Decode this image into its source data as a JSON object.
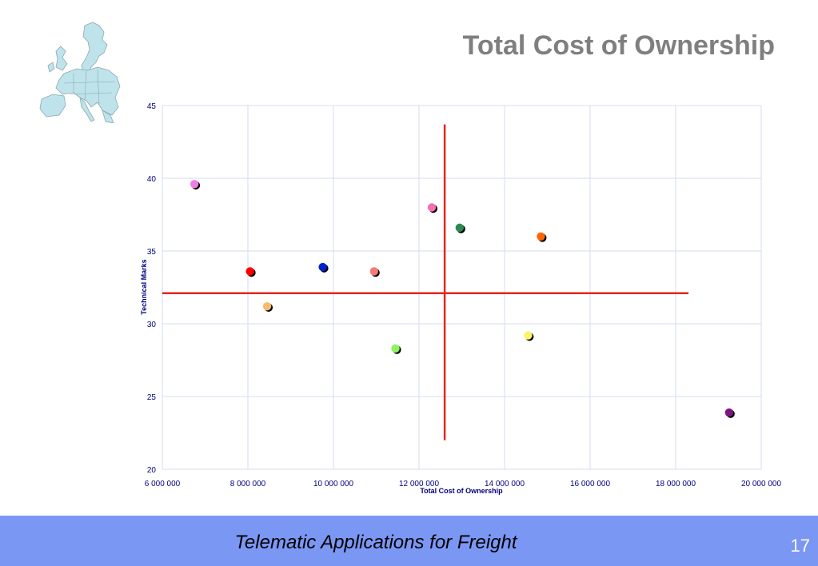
{
  "slide": {
    "title": "Total Cost of Ownership",
    "footer_text": "Telematic Applications for Freight",
    "page_number": "17"
  },
  "colors": {
    "title": "#7f7f7f",
    "footer_background": "#7b97f4",
    "threshold_lines": "#e3261d",
    "grid": "#d7dbee",
    "axis_text": "#000080",
    "map_fill": "#bfe3ea"
  },
  "icons": {
    "logo": "europe-map-icon"
  },
  "chart_data": {
    "type": "scatter",
    "title": "",
    "xlabel": "Total Cost of Ownership",
    "ylabel": "Technical  Marks",
    "xlim": [
      6000000,
      20000000
    ],
    "ylim": [
      20,
      45
    ],
    "x_ticks": [
      6000000,
      8000000,
      10000000,
      12000000,
      14000000,
      16000000,
      18000000,
      20000000
    ],
    "x_tick_labels": [
      "6 000 000",
      "8 000 000",
      "10 000 000",
      "12 000 000",
      "14 000 000",
      "16 000 000",
      "18 000 000",
      "20 000 000"
    ],
    "y_ticks": [
      20,
      25,
      30,
      35,
      40,
      45
    ],
    "y_tick_labels": [
      "20",
      "25",
      "30",
      "35",
      "40",
      "45"
    ],
    "grid": true,
    "points": [
      {
        "x": 6750000,
        "y": 39.6,
        "color": "#ee7de6"
      },
      {
        "x": 8050000,
        "y": 33.6,
        "color": "#ff0000"
      },
      {
        "x": 8450000,
        "y": 31.2,
        "color": "#f7bb6d"
      },
      {
        "x": 9750000,
        "y": 33.9,
        "color": "#0022cc"
      },
      {
        "x": 10950000,
        "y": 33.6,
        "color": "#f37b7b"
      },
      {
        "x": 11450000,
        "y": 28.3,
        "color": "#8cf25e"
      },
      {
        "x": 12300000,
        "y": 38.0,
        "color": "#f570b0"
      },
      {
        "x": 12950000,
        "y": 36.6,
        "color": "#2c8a52"
      },
      {
        "x": 14550000,
        "y": 29.2,
        "color": "#f8f56d"
      },
      {
        "x": 14850000,
        "y": 36.0,
        "color": "#ff6600"
      },
      {
        "x": 19250000,
        "y": 23.9,
        "color": "#7b1580"
      }
    ],
    "threshold_lines": {
      "vertical_x": 12600000,
      "vertical_y_range": [
        22,
        43.7
      ],
      "horizontal_y": 32.1,
      "horizontal_x_range": [
        6000000,
        18300000
      ]
    }
  }
}
